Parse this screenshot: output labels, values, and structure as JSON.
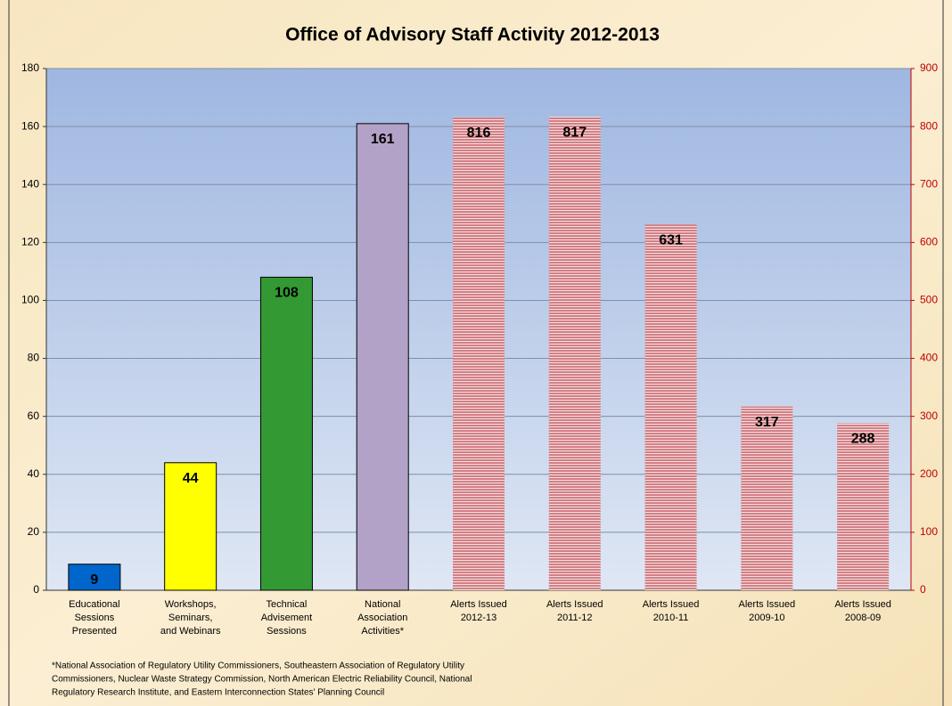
{
  "chart_data": {
    "type": "bar",
    "title": "Office of Advisory Staff Activity 2012-2013",
    "categories": [
      [
        "Educational",
        "Sessions",
        "Presented"
      ],
      [
        "Workshops,",
        "Seminars,",
        "and Webinars"
      ],
      [
        "Technical",
        "Advisement",
        "Sessions"
      ],
      [
        "National",
        "Association",
        "Activities*"
      ],
      [
        "Alerts Issued",
        "2012-13"
      ],
      [
        "Alerts Issued",
        "2011-12"
      ],
      [
        "Alerts Issued",
        "2010-11"
      ],
      [
        "Alerts Issued",
        "2009-10"
      ],
      [
        "Alerts Issued",
        "2008-09"
      ]
    ],
    "series": [
      {
        "values": [
          9,
          44,
          108,
          161,
          null,
          null,
          null,
          null,
          null
        ],
        "colors": [
          "#0066cc",
          "#ffff00",
          "#339933",
          "#b3a2c7",
          null,
          null,
          null,
          null,
          null
        ],
        "axis": "y"
      },
      {
        "values": [
          null,
          null,
          null,
          null,
          816,
          817,
          631,
          317,
          288
        ],
        "color": "#d9959a",
        "striped": true,
        "axis": "y2"
      }
    ],
    "ylim": [
      0,
      180
    ],
    "yticks": [
      0,
      20,
      40,
      60,
      80,
      100,
      120,
      140,
      160,
      180
    ],
    "y2lim": [
      0,
      900
    ],
    "y2ticks": [
      0,
      100,
      200,
      300,
      400,
      500,
      600,
      700,
      800,
      900
    ],
    "y2color": "#c00000",
    "grid": true,
    "footnote": [
      "*National Association of Regulatory Utility Commissioners, Southeastern Association of Regulatory Utility",
      "Commissioners, Nuclear Waste Strategy Commission, North American Electric Reliability Council, National",
      "Regulatory Research Institute, and Eastern Interconnection States' Planning Council"
    ]
  }
}
